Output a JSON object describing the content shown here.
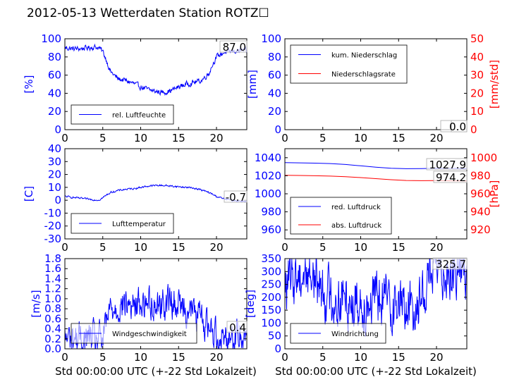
{
  "figure_title": "2012-05-13 Wetterdaten Station ROTZ☐",
  "x_axis_label": "Std 00:00:00 UTC (+-22 Std Lokalzeit)",
  "colors": {
    "blue": "#0000ff",
    "red": "#ff0000",
    "black": "#000000"
  },
  "chart_data": [
    {
      "id": "humidity",
      "type": "line",
      "ylabel": "[%]",
      "ylim": [
        0,
        100
      ],
      "yticks": [
        0,
        20,
        40,
        60,
        80,
        100
      ],
      "xlim": [
        0,
        24
      ],
      "xticks": [
        0,
        5,
        10,
        15,
        20
      ],
      "legend_position": "lower-left",
      "current_value": "87.0",
      "series": [
        {
          "name": "rel. Luftfeuchte",
          "color": "#0000ff",
          "noise": 2.5,
          "x": [
            0,
            1,
            2,
            3,
            4,
            4.5,
            5,
            5.5,
            6,
            7,
            8,
            9,
            10,
            11,
            12,
            13,
            14,
            15,
            16,
            17,
            18,
            19,
            19.5,
            20,
            21,
            22,
            23,
            24
          ],
          "y": [
            90,
            89,
            89,
            90,
            91,
            90,
            86,
            76,
            64,
            56,
            54,
            51,
            47,
            44,
            42,
            41,
            43,
            47,
            50,
            52,
            54,
            62,
            72,
            80,
            85,
            86,
            87,
            87
          ]
        }
      ]
    },
    {
      "id": "precipitation",
      "type": "line",
      "ylabel": "[mm]",
      "ylim": [
        0,
        100
      ],
      "yticks": [
        0,
        20,
        40,
        60,
        80,
        100
      ],
      "y2label": "[mm/std]",
      "y2lim": [
        0,
        50
      ],
      "y2ticks": [
        0,
        10,
        20,
        30,
        40,
        50
      ],
      "xlim": [
        0,
        24
      ],
      "xticks": [
        0,
        5,
        10,
        15,
        20
      ],
      "legend_position": "top-left",
      "current_value": "0.0",
      "current_value_2": "0.0",
      "series": [
        {
          "name": "kum. Niederschlag",
          "color": "#0000ff",
          "axis": "left",
          "x": [
            0,
            24
          ],
          "y": [
            0,
            0
          ]
        },
        {
          "name": "Niederschlagsrate",
          "color": "#ff0000",
          "axis": "right",
          "x": [
            0,
            24
          ],
          "y": [
            0,
            0
          ]
        }
      ]
    },
    {
      "id": "temperature",
      "type": "line",
      "ylabel": "[C]",
      "ylim": [
        -30,
        40
      ],
      "yticks": [
        -30,
        -20,
        -10,
        0,
        10,
        20,
        30,
        40
      ],
      "xlim": [
        0,
        24
      ],
      "xticks": [
        0,
        5,
        10,
        15,
        20
      ],
      "legend_position": "lower-left",
      "current_value": "-0.7",
      "series": [
        {
          "name": "Lufttemperatur",
          "color": "#0000ff",
          "noise": 0.6,
          "x": [
            0,
            1,
            2,
            3,
            4,
            4.5,
            5,
            5.5,
            6,
            7,
            8,
            9,
            10,
            11,
            12,
            13,
            14,
            15,
            16,
            17,
            18,
            19,
            20,
            21,
            22,
            23,
            24
          ],
          "y": [
            3,
            2.2,
            1.5,
            0.9,
            0.3,
            0.2,
            2,
            4,
            6,
            7.5,
            8.5,
            9,
            10,
            11,
            11.5,
            11.5,
            11,
            10.5,
            10,
            9.5,
            8,
            6,
            3,
            1,
            0,
            -0.5,
            -0.7
          ]
        }
      ]
    },
    {
      "id": "pressure",
      "type": "line",
      "ylabel": "",
      "ylim": [
        950,
        1050
      ],
      "yticks": [
        960,
        980,
        1000,
        1020,
        1040
      ],
      "y2label": "[hPa]",
      "y2lim": [
        910,
        1010
      ],
      "y2ticks": [
        920,
        940,
        960,
        980,
        1000
      ],
      "xlim": [
        0,
        24
      ],
      "xticks": [
        0,
        5,
        10,
        15,
        20
      ],
      "legend_position": "lower-left",
      "current_value": "1027.9",
      "current_value_2": "974.2",
      "series": [
        {
          "name": "red. Luftdruck",
          "color": "#0000ff",
          "axis": "left",
          "x": [
            0,
            2,
            4,
            6,
            8,
            10,
            12,
            14,
            16,
            18,
            20,
            22,
            24
          ],
          "y": [
            1034.5,
            1034.3,
            1034,
            1033.5,
            1032.5,
            1031,
            1029.5,
            1028.3,
            1027.8,
            1028,
            1028.3,
            1028.2,
            1027.9
          ]
        },
        {
          "name": "abs. Luftdruck",
          "color": "#ff0000",
          "axis": "right",
          "x": [
            0,
            2,
            4,
            6,
            8,
            10,
            12,
            14,
            16,
            18,
            20,
            22,
            24
          ],
          "y": [
            980.5,
            980.3,
            980,
            979.6,
            979,
            978,
            976.8,
            975.6,
            974.8,
            974.5,
            974.6,
            974.4,
            974.2
          ]
        }
      ]
    },
    {
      "id": "wind-speed",
      "type": "line",
      "ylabel": "[m/s]",
      "ylim": [
        0,
        1.8
      ],
      "yticks": [
        0.0,
        0.2,
        0.4,
        0.6,
        0.8,
        1.0,
        1.2,
        1.4,
        1.6,
        1.8
      ],
      "xlim": [
        0,
        24
      ],
      "xticks": [
        0,
        5,
        10,
        15,
        20
      ],
      "legend_position": "lower-left",
      "current_value": "0.4",
      "series": [
        {
          "name": "Windgeschwindigkeit",
          "color": "#0000ff",
          "noise": 0.28,
          "x": [
            0,
            1,
            2,
            3,
            4,
            5,
            5.5,
            6,
            7,
            8,
            9,
            10,
            11,
            12,
            13,
            14,
            15,
            16,
            17,
            18,
            19,
            20,
            21,
            22,
            23,
            24
          ],
          "y": [
            0.2,
            0.22,
            0.2,
            0.2,
            0.2,
            0.2,
            0.5,
            0.8,
            0.85,
            0.9,
            0.85,
            0.9,
            0.95,
            0.9,
            0.9,
            0.95,
            0.9,
            0.8,
            0.75,
            0.6,
            0.45,
            0.3,
            0.25,
            0.25,
            0.3,
            0.4
          ]
        }
      ]
    },
    {
      "id": "wind-direction",
      "type": "line",
      "ylabel": "[deg]",
      "ylim": [
        0,
        350
      ],
      "yticks": [
        0,
        50,
        100,
        150,
        200,
        250,
        300,
        350
      ],
      "xlim": [
        0,
        24
      ],
      "xticks": [
        0,
        5,
        10,
        15,
        20
      ],
      "legend_position": "lower-left",
      "current_value": "325.7",
      "series": [
        {
          "name": "Windrichtung",
          "color": "#0000ff",
          "noise": 95,
          "x": [
            0,
            1,
            2,
            3,
            4,
            5,
            6,
            7,
            8,
            9,
            10,
            11,
            12,
            13,
            14,
            15,
            16,
            17,
            18,
            19,
            20,
            21,
            22,
            23,
            24
          ],
          "y": [
            240,
            270,
            290,
            300,
            280,
            230,
            200,
            190,
            200,
            185,
            180,
            190,
            185,
            195,
            180,
            175,
            165,
            160,
            200,
            290,
            310,
            315,
            310,
            315,
            325.7
          ]
        }
      ]
    }
  ]
}
